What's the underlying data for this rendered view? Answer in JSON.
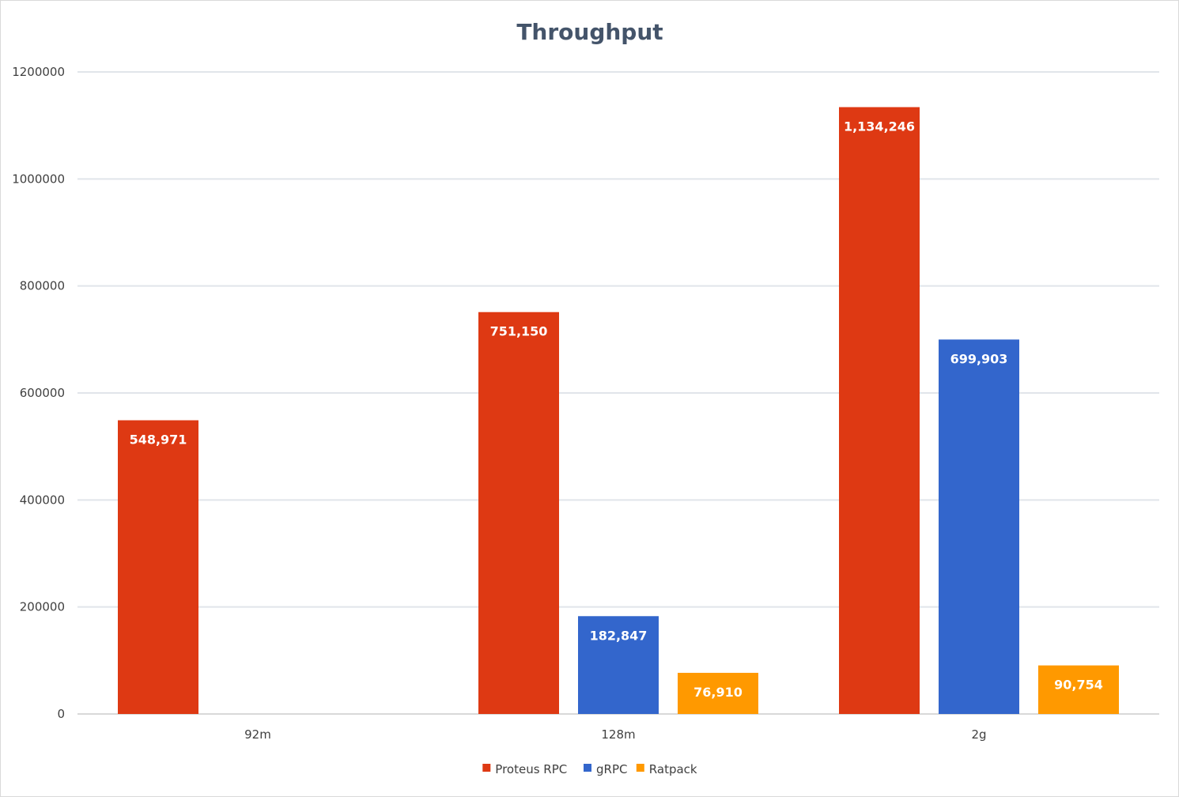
{
  "chart_data": {
    "type": "bar",
    "title": "Throughput",
    "xlabel": "",
    "ylabel": "",
    "categories": [
      "92m",
      "128m",
      "2g"
    ],
    "series": [
      {
        "name": "Proteus RPC",
        "color": "#de3913",
        "values": [
          548971,
          751150,
          1134246
        ],
        "labels": [
          "548,971",
          "751,150",
          "1,134,246"
        ]
      },
      {
        "name": "gRPC",
        "color": "#3366cc",
        "values": [
          null,
          182847,
          699903
        ],
        "labels": [
          "",
          "182,847",
          "699,903"
        ]
      },
      {
        "name": "Ratpack",
        "color": "#ff9900",
        "values": [
          null,
          76910,
          90754
        ],
        "labels": [
          "",
          "76,910",
          "90,754"
        ]
      }
    ],
    "ylim": [
      0,
      1200000
    ],
    "yticks": [
      0,
      200000,
      400000,
      600000,
      800000,
      1000000,
      1200000
    ],
    "ytick_labels": [
      "0",
      "200000",
      "400000",
      "600000",
      "800000",
      "1000000",
      "1200000"
    ],
    "grid": true,
    "legend_position": "bottom"
  }
}
